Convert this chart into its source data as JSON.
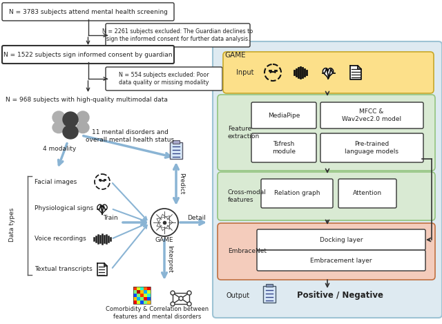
{
  "bg_color": "#ffffff",
  "game_box_color": "#deeaf1",
  "game_box_edge": "#9dc3d4",
  "input_box_color": "#fce08a",
  "input_box_edge": "#c8a828",
  "feature_box_color": "#d9ead3",
  "feature_box_edge": "#93c47d",
  "cross_box_color": "#d9ead3",
  "cross_box_edge": "#93c47d",
  "embrace_box_color": "#f4ccbc",
  "embrace_box_edge": "#c07040",
  "inner_box_color": "#ffffff",
  "inner_box_edge": "#333333",
  "arrow_color": "#333333",
  "blue_arrow_color": "#8ab4d4",
  "text_color": "#222222",
  "flowchart": {
    "box1": "N = 3783 subjects attend mental health screening",
    "box2": "N = 1522 subjects sign informed consent by guardian",
    "box3": "N = 968 subjects with high-quality multimodal data",
    "excl1": "N = 2261 subjects excluded: The Guardian declines to\nsign the informed consent for further data analysis.",
    "excl2": "N = 554 subjects excluded: Poor\ndata quality or missing modality"
  },
  "data_types": [
    "Facial images",
    "Physiological signs",
    "Voice recordings",
    "Textual transcripts"
  ],
  "game_label": "GAME",
  "feature_label": "Feature\nextraction",
  "feature_boxes": [
    "MediaPipe",
    "MFCC &\nWav2vec2.0 model",
    "Tsfresh\nmodule",
    "Pre-trained\nlanguage models"
  ],
  "cross_label": "Cross-modal\nfeatures",
  "cross_boxes": [
    "Relation graph",
    "Attention"
  ],
  "embrace_label": "EmbraceNet",
  "embrace_boxes": [
    "Docking layer",
    "Embracement layer"
  ],
  "output_label": "Output",
  "output_text": "Positive / Negative",
  "input_label": "Input",
  "modality": "4 modality",
  "data_types_label": "Data types",
  "mental_disorders": "11 mental disorders and\noverall mental health status",
  "train_label": "Train",
  "predict_label": "Predict",
  "interpret_label": "Interpret",
  "detail_label": "Detail",
  "comorbidity": "Comorbidity & Correlation between\nfeatures and mental disorders"
}
